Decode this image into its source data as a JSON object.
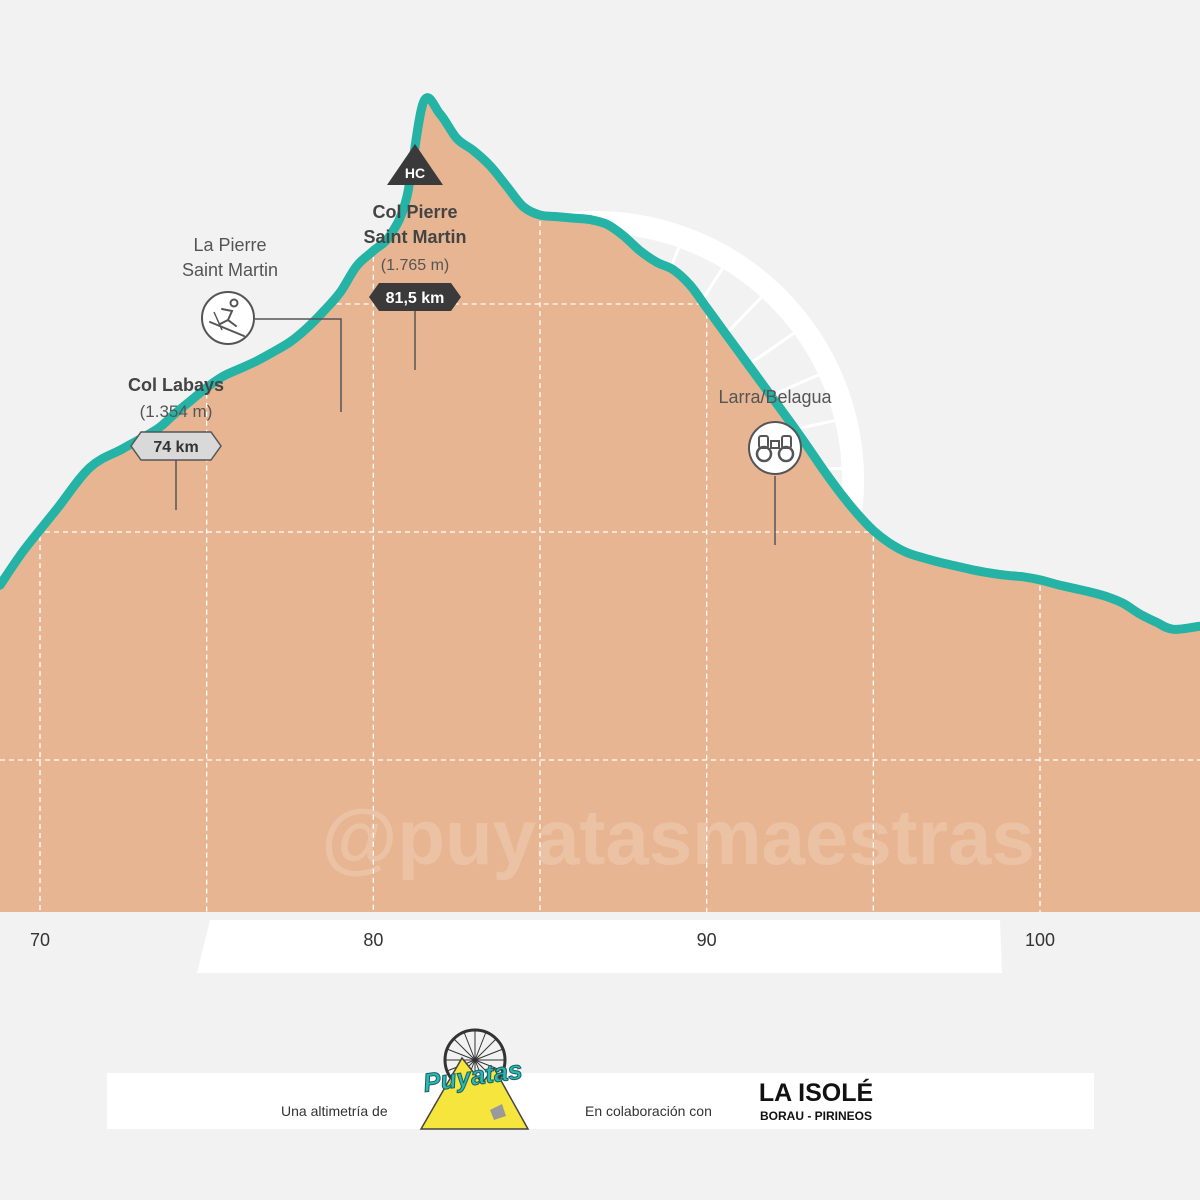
{
  "colors": {
    "background": "#f2f2f2",
    "profile_fill": "#e8b592",
    "profile_line": "#24b3a4",
    "grid": "#ffffff",
    "label_text": "#555555",
    "callout_line": "#555555",
    "dark_badge": "#3a3a3a",
    "light_badge": "#d9d9d9",
    "puyatas_yellow": "#f5e53c",
    "puyatas_teal": "#2bb9b7"
  },
  "watermark": "@puyatasmaestras",
  "chart_data": {
    "type": "area",
    "title": "",
    "xlabel": "",
    "ylabel": "",
    "x_unit": "km",
    "y_unit": "m",
    "xlim": [
      68.8,
      104.8
    ],
    "ylim": [
      700,
      1900
    ],
    "x_ticks": [
      70,
      80,
      90,
      100
    ],
    "x_tick_labels": [
      "70",
      "80",
      "90",
      "100"
    ],
    "grid": true,
    "grid_x": [
      70,
      75,
      80,
      85,
      90,
      95,
      100
    ],
    "grid_y": [
      900,
      1200,
      1500
    ],
    "series": [
      {
        "x": [
          68.8,
          69.5,
          70.5,
          71.5,
          72.5,
          73.5,
          74,
          74.5,
          75,
          75.5,
          76,
          76.5,
          77,
          77.5,
          78,
          78.5,
          79,
          79.5,
          80,
          80.5,
          81,
          81.5,
          82,
          82.5,
          83,
          83.5,
          84,
          84.5,
          85,
          85.5,
          86,
          86.5,
          87,
          87.5,
          88,
          88.5,
          89,
          89.5,
          90,
          90.5,
          91,
          91.5,
          92,
          92.5,
          93,
          93.5,
          94,
          94.5,
          95,
          95.5,
          96,
          96.5,
          97,
          97.5,
          98,
          98.5,
          99,
          99.5,
          100,
          100.5,
          101,
          101.5,
          102,
          102.5,
          103,
          103.5,
          104,
          104.8
        ],
        "y": [
          1130,
          1175,
          1230,
          1285,
          1310,
          1335,
          1354,
          1372,
          1390,
          1405,
          1415,
          1425,
          1437,
          1450,
          1468,
          1490,
          1515,
          1550,
          1570,
          1590,
          1640,
          1765,
          1750,
          1718,
          1702,
          1682,
          1655,
          1628,
          1617,
          1615,
          1613,
          1611,
          1605,
          1590,
          1570,
          1555,
          1545,
          1525,
          1495,
          1465,
          1435,
          1405,
          1375,
          1345,
          1314,
          1282,
          1252,
          1225,
          1202,
          1185,
          1173,
          1166,
          1160,
          1155,
          1150,
          1146,
          1143,
          1141,
          1137,
          1131,
          1126,
          1121,
          1115,
          1106,
          1092,
          1081,
          1072,
          1076
        ]
      }
    ],
    "annotations": [
      {
        "type": "climb",
        "name": "Col Labays",
        "elevation": "(1.354 m)",
        "km_label": "74 km",
        "km": 74
      },
      {
        "type": "ski",
        "name_lines": [
          "La Pierre",
          "Saint Martin"
        ],
        "icon": "skier-icon",
        "km": 79
      },
      {
        "type": "summit",
        "category": "HC",
        "name_lines": [
          "Col Pierre",
          "Saint Martin"
        ],
        "elevation": "(1.765 m)",
        "km_label": "81,5 km",
        "km": 81.5
      },
      {
        "type": "viewpoint",
        "name": "Larra/Belagua",
        "icon": "binoculars-icon",
        "km": 92
      }
    ]
  },
  "footer": {
    "by_text": "Una altimetría de",
    "brand": "Puyatas",
    "collab_text": "En colaboración con",
    "partner_line1": "LA ISOLÉ",
    "partner_line2": "BORAU - PIRINEOS"
  }
}
